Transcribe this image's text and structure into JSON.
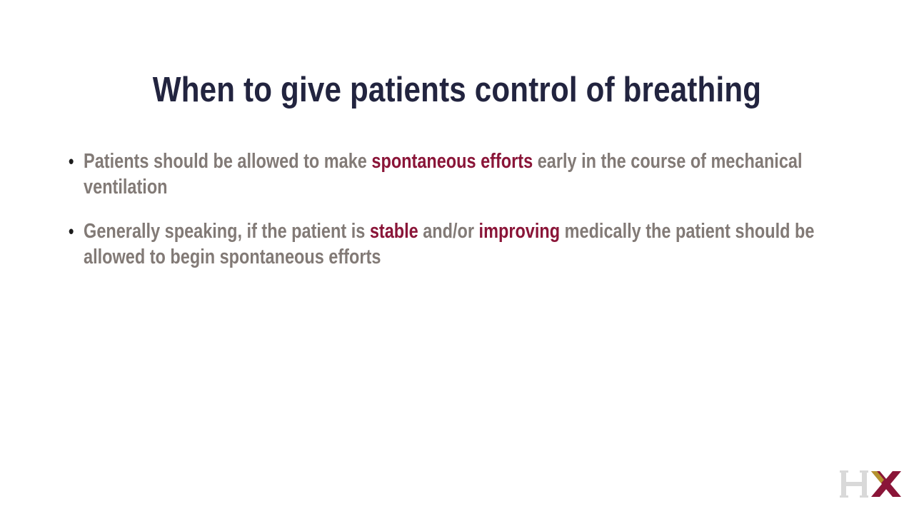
{
  "slide": {
    "title": "When to give patients control of breathing",
    "bullets": [
      {
        "before": "Patients should be allowed to make ",
        "highlight1": "spontaneous efforts",
        "middle": " early in the course of mechanical ventilation",
        "highlight2": "",
        "after": ""
      },
      {
        "before": "Generally speaking, if the patient is ",
        "highlight1": "stable",
        "middle": " and/or ",
        "highlight2": "improving",
        "after": " medically the patient should be allowed to begin spontaneous efforts"
      }
    ],
    "bullet_marker": "•"
  },
  "logo": {
    "text": "HX",
    "colors": {
      "h": "#d9d9d9",
      "x": "#8a1538",
      "x_accent": "#b5922f"
    }
  },
  "colors": {
    "title": "#22243f",
    "body": "#827a76",
    "highlight": "#8a1538"
  }
}
